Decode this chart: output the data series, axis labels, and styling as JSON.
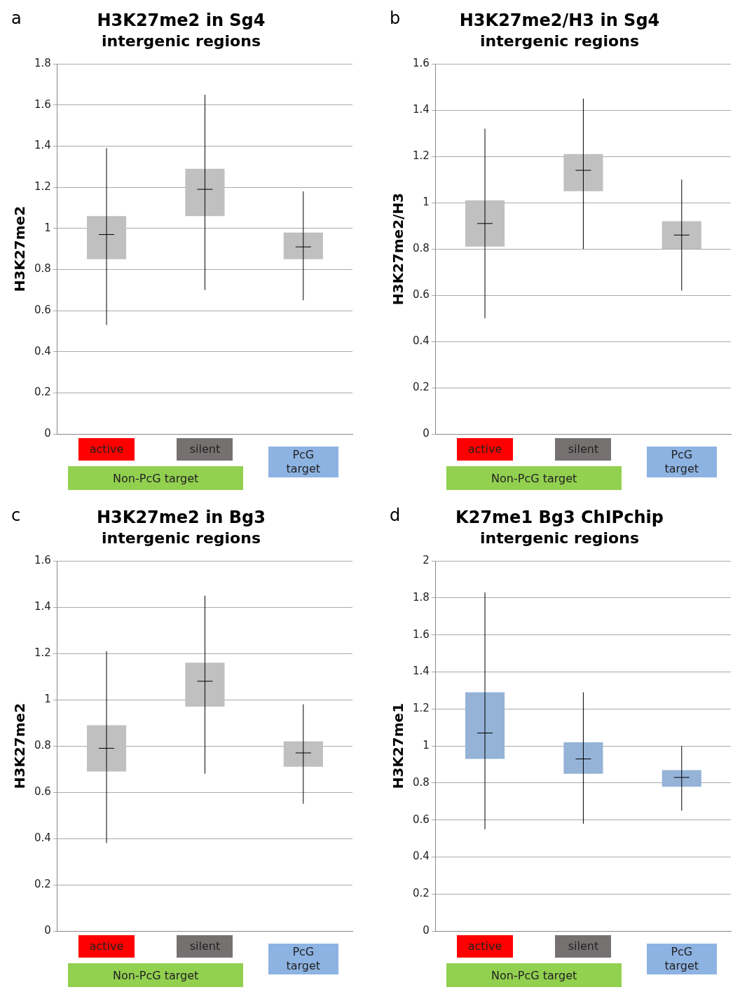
{
  "chart_data": [
    {
      "type": "box",
      "title": "H3K27me2 in Sg4",
      "subtitle": "intergenic regions",
      "ylabel": "H3K27me2",
      "categories": [
        "active",
        "silent",
        "PcG target"
      ],
      "color": "#c0c0c0",
      "ylim": [
        0,
        1.8
      ],
      "yticks": [
        0,
        0.2,
        0.4,
        0.6,
        0.8,
        1,
        1.2,
        1.4,
        1.6,
        1.8
      ],
      "grid": "y",
      "legend": false,
      "annotations": [
        "a",
        "Non-PcG target"
      ],
      "boxes": [
        {
          "low": 0.53,
          "q1": 0.85,
          "median": 0.97,
          "q3": 1.06,
          "high": 1.39
        },
        {
          "low": 0.7,
          "q1": 1.06,
          "median": 1.19,
          "q3": 1.29,
          "high": 1.65
        },
        {
          "low": 0.65,
          "q1": 0.85,
          "median": 0.91,
          "q3": 0.98,
          "high": 1.18
        }
      ]
    },
    {
      "type": "box",
      "title": "H3K27me2/H3 in Sg4",
      "subtitle": "intergenic regions",
      "ylabel": "H3K27me2/H3",
      "categories": [
        "active",
        "silent",
        "PcG target"
      ],
      "color": "#c0c0c0",
      "ylim": [
        0,
        1.6
      ],
      "yticks": [
        0,
        0.2,
        0.4,
        0.6,
        0.8,
        1,
        1.2,
        1.4,
        1.6
      ],
      "grid": "y",
      "legend": false,
      "annotations": [
        "b",
        "Non-PcG target"
      ],
      "boxes": [
        {
          "low": 0.5,
          "q1": 0.81,
          "median": 0.91,
          "q3": 1.01,
          "high": 1.32
        },
        {
          "low": 0.8,
          "q1": 1.05,
          "median": 1.14,
          "q3": 1.21,
          "high": 1.45
        },
        {
          "low": 0.62,
          "q1": 0.8,
          "median": 0.86,
          "q3": 0.92,
          "high": 1.1
        }
      ]
    },
    {
      "type": "box",
      "title": "H3K27me2 in Bg3",
      "subtitle": "intergenic regions",
      "ylabel": "H3K27me2",
      "categories": [
        "active",
        "silent",
        "PcG target"
      ],
      "color": "#c0c0c0",
      "ylim": [
        0,
        1.6
      ],
      "yticks": [
        0,
        0.2,
        0.4,
        0.6,
        0.8,
        1,
        1.2,
        1.4,
        1.6
      ],
      "grid": "y",
      "legend": false,
      "annotations": [
        "c",
        "Non-PcG target"
      ],
      "boxes": [
        {
          "low": 0.38,
          "q1": 0.69,
          "median": 0.79,
          "q3": 0.89,
          "high": 1.21
        },
        {
          "low": 0.68,
          "q1": 0.97,
          "median": 1.08,
          "q3": 1.16,
          "high": 1.45
        },
        {
          "low": 0.55,
          "q1": 0.71,
          "median": 0.77,
          "q3": 0.82,
          "high": 0.98
        }
      ]
    },
    {
      "type": "box",
      "title": "K27me1 Bg3 ChIPchip",
      "subtitle": "intergenic regions",
      "ylabel": "H3K27me1",
      "categories": [
        "active",
        "silent",
        "PcG target"
      ],
      "color": "#95b3d7",
      "ylim": [
        0,
        2
      ],
      "yticks": [
        0,
        0.2,
        0.4,
        0.6,
        0.8,
        1,
        1.2,
        1.4,
        1.6,
        1.8,
        2
      ],
      "grid": "y",
      "legend": false,
      "annotations": [
        "d",
        "Non-PcG target"
      ],
      "boxes": [
        {
          "low": 0.55,
          "q1": 0.93,
          "median": 1.07,
          "q3": 1.29,
          "high": 1.83
        },
        {
          "low": 0.58,
          "q1": 0.85,
          "median": 0.93,
          "q3": 1.02,
          "high": 1.29
        },
        {
          "low": 0.65,
          "q1": 0.78,
          "median": 0.83,
          "q3": 0.87,
          "high": 1.0
        }
      ]
    }
  ]
}
